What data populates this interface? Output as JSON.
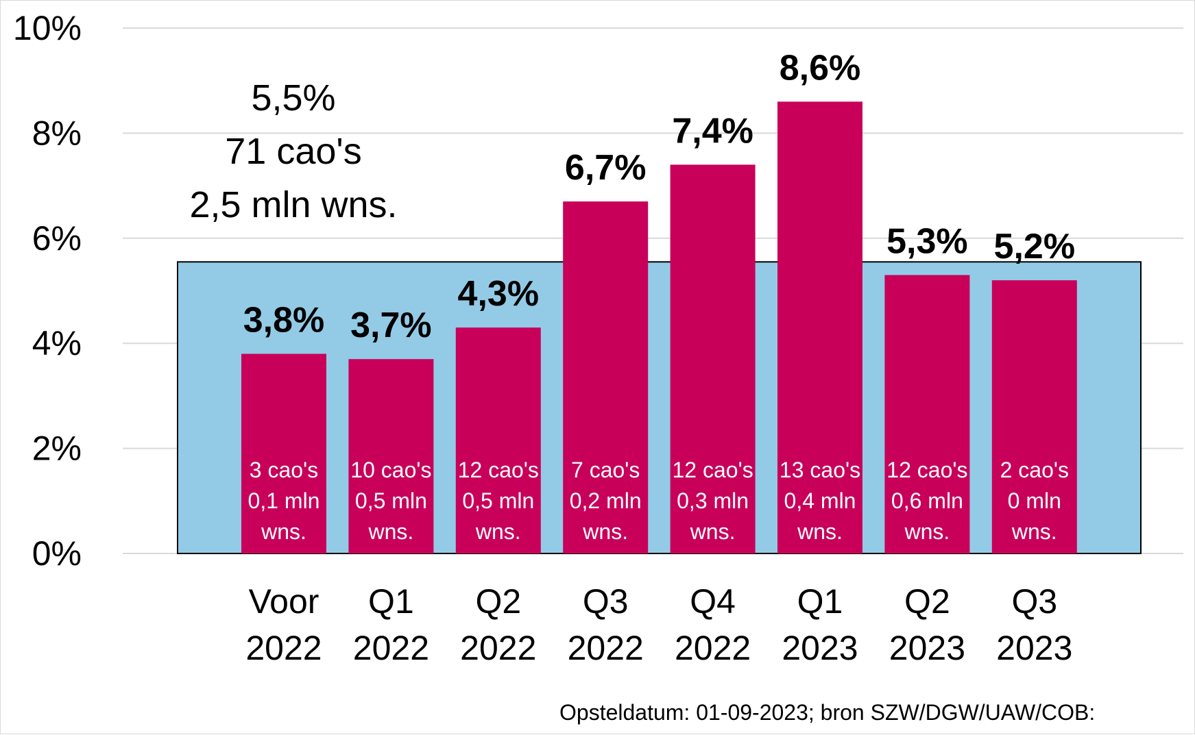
{
  "chart_data": {
    "type": "bar",
    "ylim": [
      0,
      10
    ],
    "y_ticks": [
      "0%",
      "2%",
      "4%",
      "6%",
      "8%",
      "10%"
    ],
    "categories": [
      [
        "Voor",
        "2022"
      ],
      [
        "Q1",
        "2022"
      ],
      [
        "Q2",
        "2022"
      ],
      [
        "Q3",
        "2022"
      ],
      [
        "Q4",
        "2022"
      ],
      [
        "Q1",
        "2023"
      ],
      [
        "Q2",
        "2023"
      ],
      [
        "Q3",
        "2023"
      ]
    ],
    "values": [
      3.8,
      3.7,
      4.3,
      6.7,
      7.4,
      8.6,
      5.3,
      5.2
    ],
    "value_labels": [
      "3,8%",
      "3,7%",
      "4,3%",
      "6,7%",
      "7,4%",
      "8,6%",
      "5,3%",
      "5,2%"
    ],
    "bar_notes": [
      [
        "3 cao's",
        "0,1 mln",
        "wns."
      ],
      [
        "10 cao's",
        "0,5 mln",
        "wns."
      ],
      [
        "12 cao's",
        "0,5 mln",
        "wns."
      ],
      [
        "7 cao's",
        "0,2 mln",
        "wns."
      ],
      [
        "12 cao's",
        "0,3 mln",
        "wns."
      ],
      [
        "13 cao's",
        "0,4 mln",
        "wns."
      ],
      [
        "12 cao's",
        "0,6 mln",
        "wns."
      ],
      [
        "2 cao's",
        "0 mln",
        "wns."
      ]
    ],
    "average": {
      "value": 5.55,
      "lines": [
        "5,5%",
        "71 cao's",
        "2,5 mln wns."
      ]
    },
    "source": "Opsteldatum: 01-09-2023; bron SZW/DGW/UAW/COB:",
    "grid": true,
    "colors": {
      "bar": "#c8005a",
      "average_area": "#93cbe7",
      "gridline": "#d9d9d9"
    }
  }
}
